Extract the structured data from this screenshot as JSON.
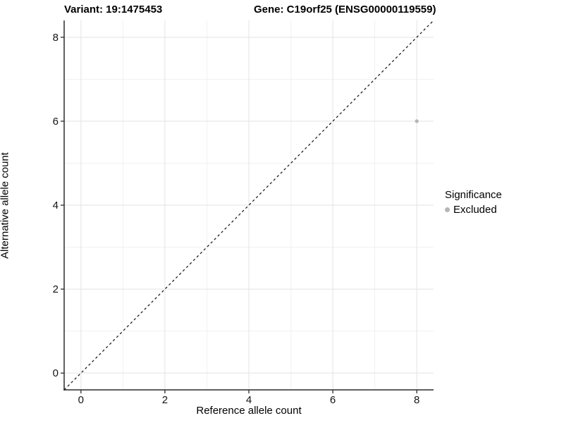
{
  "title": {
    "variant": "Variant: 19:1475453",
    "gene": "Gene: C19orf25 (ENSG00000119559)"
  },
  "chart_data": {
    "type": "scatter",
    "xlabel": "Reference allele count",
    "ylabel": "Alternative allele count",
    "xlim": [
      -0.4,
      8.4
    ],
    "ylim": [
      -0.4,
      8.4
    ],
    "x_ticks": [
      0,
      2,
      4,
      6,
      8
    ],
    "y_ticks": [
      0,
      2,
      4,
      6,
      8
    ],
    "x_minor_ticks": [
      1,
      3,
      5,
      7
    ],
    "y_minor_ticks": [
      1,
      3,
      5,
      7
    ],
    "grid": "major+minor",
    "points": [
      {
        "x": 8,
        "y": 6,
        "series": "Excluded"
      }
    ],
    "reference_line": {
      "kind": "identity",
      "slope": 1,
      "intercept": 0,
      "style": "dashed"
    },
    "legend": {
      "title": "Significance",
      "position": "right",
      "items": [
        {
          "label": "Excluded",
          "color": "#b5b5b5"
        }
      ]
    }
  },
  "colors": {
    "background": "#ffffff",
    "grid_major": "#e3e3e3",
    "grid_minor": "#f1f1f1",
    "axis_line": "#2b2b2b",
    "tick_label": "#141414",
    "point_excluded": "#b5b5b5",
    "reference_line": "#111111"
  }
}
